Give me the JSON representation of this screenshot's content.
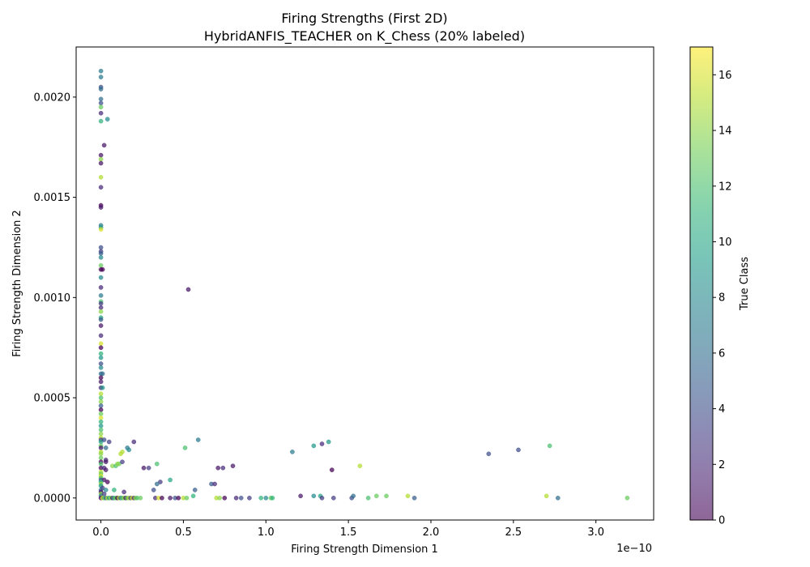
{
  "chart_data": {
    "type": "scatter",
    "title": "Firing Strengths (First 2D)",
    "subtitle": "HybridANFIS_TEACHER on K_Chess (20% labeled)",
    "xlabel": "Firing Strength Dimension 1",
    "ylabel": "Firing Strength Dimension 2",
    "x_scale_note": "1e−10",
    "xlim": [
      -0.15,
      3.35
    ],
    "ylim": [
      -0.00011,
      0.00225
    ],
    "x_ticks": [
      0.0,
      0.5,
      1.0,
      1.5,
      2.0,
      2.5,
      3.0
    ],
    "x_tick_labels": [
      "0.0",
      "0.5",
      "1.0",
      "1.5",
      "2.0",
      "2.5",
      "3.0"
    ],
    "y_ticks": [
      0,
      0.0005,
      0.001,
      0.0015,
      0.002
    ],
    "y_tick_labels": [
      "0.0000",
      "0.0005",
      "0.0010",
      "0.0015",
      "0.0020"
    ],
    "grid": false,
    "colorbar": {
      "label": "True Class",
      "min": 0,
      "max": 17,
      "ticks": [
        0,
        2,
        4,
        6,
        8,
        10,
        12,
        14,
        16
      ],
      "tick_labels": [
        "0",
        "2",
        "4",
        "6",
        "8",
        "10",
        "12",
        "14",
        "16"
      ],
      "colormap": "viridis",
      "stops": [
        "#440154",
        "#482878",
        "#3e4989",
        "#31688e",
        "#26828e",
        "#1f9e89",
        "#35b779",
        "#6ece58",
        "#b5de2b",
        "#fde725"
      ]
    },
    "points": [
      [
        0,
        0.00213,
        7
      ],
      [
        0,
        0.0021,
        7
      ],
      [
        0,
        0.00205,
        4
      ],
      [
        0,
        0.00204,
        6
      ],
      [
        0,
        0.00199,
        6
      ],
      [
        0,
        0.00197,
        4
      ],
      [
        0,
        0.00195,
        13
      ],
      [
        0,
        0.00192,
        2
      ],
      [
        0,
        0.00188,
        11
      ],
      [
        0.04,
        0.00189,
        8
      ],
      [
        0.02,
        0.00176,
        1
      ],
      [
        0,
        0.00171,
        1
      ],
      [
        0,
        0.00169,
        14
      ],
      [
        0,
        0.00167,
        1
      ],
      [
        0,
        0.0016,
        15
      ],
      [
        0,
        0.00155,
        2
      ],
      [
        0,
        0.00146,
        0
      ],
      [
        0,
        0.00145,
        1
      ],
      [
        0,
        0.00136,
        7
      ],
      [
        0,
        0.00135,
        9
      ],
      [
        0,
        0.00134,
        16
      ],
      [
        0,
        0.00125,
        4
      ],
      [
        0,
        0.00123,
        3
      ],
      [
        0,
        0.00122,
        5
      ],
      [
        0,
        0.0012,
        8
      ],
      [
        0,
        0.00116,
        13
      ],
      [
        0,
        0.00114,
        0
      ],
      [
        0.01,
        0.00114,
        0
      ],
      [
        0,
        0.0011,
        8
      ],
      [
        0,
        0.00105,
        2
      ],
      [
        0,
        0.00101,
        7
      ],
      [
        0,
        0.00098,
        12
      ],
      [
        0,
        0.00097,
        3
      ],
      [
        0,
        0.00095,
        2
      ],
      [
        0,
        0.00093,
        14
      ],
      [
        0,
        0.0009,
        10
      ],
      [
        0,
        0.00089,
        5
      ],
      [
        0,
        0.00086,
        1
      ],
      [
        0,
        0.00081,
        2
      ],
      [
        0,
        0.00077,
        16
      ],
      [
        0,
        0.00075,
        0
      ],
      [
        0,
        0.00072,
        11
      ],
      [
        0,
        0.0007,
        9
      ],
      [
        0,
        0.00067,
        4
      ],
      [
        0,
        0.00065,
        8
      ],
      [
        0,
        0.00062,
        6
      ],
      [
        0.01,
        0.00062,
        6
      ],
      [
        0,
        0.0006,
        0
      ],
      [
        0,
        0.00058,
        1
      ],
      [
        0,
        0.00055,
        2
      ],
      [
        0.01,
        0.00055,
        9
      ],
      [
        0,
        0.00052,
        15
      ],
      [
        0,
        0.0005,
        12
      ],
      [
        0,
        0.00048,
        14
      ],
      [
        0,
        0.00046,
        5
      ],
      [
        0,
        0.00044,
        0
      ],
      [
        0,
        0.00042,
        13
      ],
      [
        0,
        0.0004,
        16
      ],
      [
        0,
        0.00038,
        11
      ],
      [
        0,
        0.00036,
        9
      ],
      [
        0,
        0.00034,
        12
      ],
      [
        0,
        0.00032,
        14
      ],
      [
        0,
        0.0003,
        15
      ],
      [
        0,
        0.00029,
        3
      ],
      [
        0,
        0.00028,
        10
      ],
      [
        0.02,
        0.00029,
        4
      ],
      [
        0.05,
        0.00028,
        3
      ],
      [
        0,
        0.00026,
        13
      ],
      [
        0,
        0.00025,
        1
      ],
      [
        0.03,
        0.00025,
        6
      ],
      [
        0,
        0.00023,
        15
      ],
      [
        0,
        0.00022,
        14
      ],
      [
        0,
        0.0002,
        13
      ],
      [
        0.03,
        0.00019,
        2
      ],
      [
        0,
        0.00018,
        0
      ],
      [
        0.03,
        0.00018,
        1
      ],
      [
        0,
        0.00017,
        12
      ],
      [
        0.07,
        0.00016,
        14
      ],
      [
        0.09,
        0.00016,
        12
      ],
      [
        0.11,
        0.00017,
        13
      ],
      [
        0.12,
        0.00022,
        15
      ],
      [
        0.13,
        0.00023,
        15
      ],
      [
        0.2,
        0.00028,
        2
      ],
      [
        0.16,
        0.00025,
        7
      ],
      [
        0.17,
        0.00024,
        8
      ],
      [
        0.13,
        0.00018,
        3
      ],
      [
        0.1,
        0.00017,
        14
      ],
      [
        0,
        0.00015,
        0
      ],
      [
        0.02,
        0.00015,
        2
      ],
      [
        0.03,
        0.00014,
        1
      ],
      [
        0,
        0.00013,
        15
      ],
      [
        0,
        0.00012,
        13
      ],
      [
        0,
        0.00011,
        16
      ],
      [
        0,
        0.0001,
        12
      ],
      [
        0,
        9e-05,
        4
      ],
      [
        0.02,
        9e-05,
        1
      ],
      [
        0.04,
        8e-05,
        0
      ],
      [
        0,
        8e-05,
        11
      ],
      [
        0,
        7e-05,
        14
      ],
      [
        0,
        6e-05,
        9
      ],
      [
        0.01,
        5e-05,
        3
      ],
      [
        0,
        4e-05,
        5
      ],
      [
        0.03,
        4e-05,
        8
      ],
      [
        0.08,
        4e-05,
        11
      ],
      [
        0.14,
        3e-05,
        2
      ],
      [
        0,
        3e-05,
        1
      ],
      [
        0,
        2e-05,
        14
      ],
      [
        0,
        1e-05,
        7
      ],
      [
        0.02,
        2e-05,
        3
      ],
      [
        0,
        0,
        0
      ],
      [
        0.01,
        0,
        16
      ],
      [
        0.02,
        0,
        12
      ],
      [
        0.03,
        0,
        5
      ],
      [
        0.04,
        0,
        15
      ],
      [
        0.05,
        0,
        9
      ],
      [
        0.06,
        0,
        14
      ],
      [
        0.07,
        0,
        2
      ],
      [
        0.08,
        0,
        11
      ],
      [
        0.09,
        0,
        13
      ],
      [
        0.1,
        0,
        0
      ],
      [
        0.11,
        0,
        15
      ],
      [
        0.12,
        0,
        6
      ],
      [
        0.13,
        0,
        12
      ],
      [
        0.14,
        0,
        14
      ],
      [
        0.15,
        0,
        1
      ],
      [
        0.16,
        0,
        13
      ],
      [
        0.17,
        0,
        15
      ],
      [
        0.18,
        0,
        3
      ],
      [
        0.19,
        0,
        16
      ],
      [
        0.2,
        0,
        2
      ],
      [
        0.21,
        0,
        14
      ],
      [
        0.22,
        0,
        12
      ],
      [
        0.24,
        0,
        13
      ],
      [
        0.26,
        0.00015,
        1
      ],
      [
        0.29,
        0.00015,
        3
      ],
      [
        0.34,
        0.00017,
        12
      ],
      [
        0.32,
        4e-05,
        4
      ],
      [
        0.33,
        0,
        2
      ],
      [
        0.35,
        0,
        16
      ],
      [
        0.37,
        0,
        0
      ],
      [
        0.36,
        8e-05,
        3
      ],
      [
        0.34,
        7e-05,
        6
      ],
      [
        0.42,
        9e-05,
        10
      ],
      [
        0.42,
        0,
        1
      ],
      [
        0.45,
        0,
        4
      ],
      [
        0.47,
        0,
        0
      ],
      [
        0.5,
        0,
        15
      ],
      [
        0.52,
        0,
        13
      ],
      [
        0.51,
        0.00025,
        12
      ],
      [
        0.53,
        0.00104,
        1
      ],
      [
        0.56,
        1e-05,
        11
      ],
      [
        0.59,
        0.00029,
        7
      ],
      [
        0.57,
        4e-05,
        5
      ],
      [
        0.67,
        7e-05,
        5
      ],
      [
        0.69,
        7e-05,
        2
      ],
      [
        0.71,
        0.00015,
        1
      ],
      [
        0.74,
        0.00015,
        2
      ],
      [
        0.7,
        0,
        15
      ],
      [
        0.72,
        0,
        14
      ],
      [
        0.75,
        0,
        0
      ],
      [
        0.8,
        0.00016,
        1
      ],
      [
        0.82,
        0,
        2
      ],
      [
        0.85,
        0,
        4
      ],
      [
        0.9,
        0,
        3
      ],
      [
        0.97,
        0,
        11
      ],
      [
        1.0,
        0,
        8
      ],
      [
        1.03,
        0,
        13
      ],
      [
        1.04,
        0,
        11
      ],
      [
        1.16,
        0.00023,
        7
      ],
      [
        1.21,
        1e-05,
        1
      ],
      [
        1.29,
        0.00026,
        9
      ],
      [
        1.29,
        1e-05,
        8
      ],
      [
        1.33,
        1e-05,
        10
      ],
      [
        1.34,
        0.00027,
        2
      ],
      [
        1.34,
        0,
        3
      ],
      [
        1.38,
        0.00028,
        9
      ],
      [
        1.4,
        0.00014,
        0
      ],
      [
        1.41,
        0,
        3
      ],
      [
        1.52,
        0,
        4
      ],
      [
        1.53,
        1e-05,
        6
      ],
      [
        1.57,
        0.00016,
        15
      ],
      [
        1.62,
        0,
        12
      ],
      [
        1.67,
        1e-05,
        13
      ],
      [
        1.73,
        1e-05,
        13
      ],
      [
        1.86,
        1e-05,
        15
      ],
      [
        1.9,
        0,
        5
      ],
      [
        2.35,
        0.00022,
        4
      ],
      [
        2.53,
        0.00024,
        4
      ],
      [
        2.7,
        1e-05,
        15
      ],
      [
        2.72,
        0.00026,
        12
      ],
      [
        2.77,
        0,
        6
      ],
      [
        3.19,
        0,
        13
      ]
    ]
  }
}
